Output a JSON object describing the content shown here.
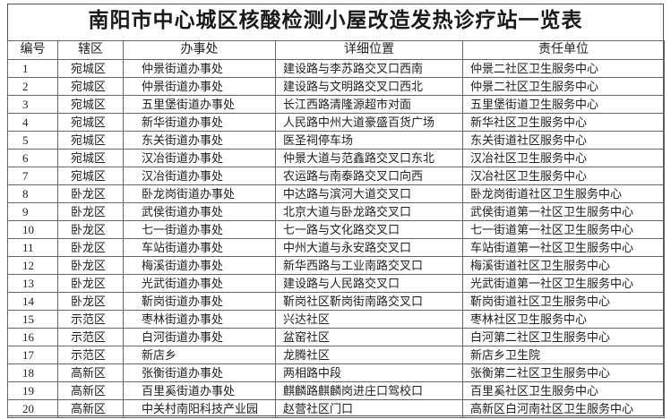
{
  "title": "南阳市中心城区核酸检测小屋改造发热诊疗站一览表",
  "headers": [
    "编号",
    "辖区",
    "办事处",
    "详细位置",
    "责任单位"
  ],
  "rows": [
    [
      "1",
      "宛城区",
      "仲景街道办事处",
      "建设路与李苏路交叉口西南",
      "仲景二社区卫生服务中心"
    ],
    [
      "2",
      "宛城区",
      "仲景街道办事处",
      "建设路与文明路交叉口西北",
      "仲景二社区卫生服务中心"
    ],
    [
      "3",
      "宛城区",
      "五里堡街道办事处",
      "长江西路清隆源超市对面",
      "五里堡街道卫生服务中心"
    ],
    [
      "4",
      "宛城区",
      "新华街道办事处",
      "人民路中州大道豪盛百货广场",
      "新华社区卫生服务中心"
    ],
    [
      "5",
      "宛城区",
      "东关街道办事处",
      "医圣祠停车场",
      "东关街道社区服务中心"
    ],
    [
      "6",
      "宛城区",
      "汉冶街道办事处",
      "仲景大道与范鑫路交叉口东北",
      "汉冶社区卫生服务中心"
    ],
    [
      "7",
      "宛城区",
      "汉冶街道办事处",
      "农运路与南泰路交叉口向西",
      "汉冶社区卫生服务中心"
    ],
    [
      "8",
      "卧龙区",
      "卧龙岗街道办事处",
      "中达路与滨河大道交叉口",
      "卧龙岗街道社区卫生服务中心"
    ],
    [
      "9",
      "卧龙区",
      "武侯街道办事处",
      "北京大道与卧龙路交叉口",
      "武侯街道第一社区卫生服务中心"
    ],
    [
      "10",
      "卧龙区",
      "七一街道办事处",
      "七一路与文化路交叉口",
      "七一街道第一社区卫生服务中心"
    ],
    [
      "11",
      "卧龙区",
      "车站街道办事处",
      "中州大道与永安路交叉口",
      "车站街道第一社区卫生服务中心"
    ],
    [
      "12",
      "卧龙区",
      "梅溪街道办事处",
      "新华西路与工业南路交叉口",
      "梅溪街道社区卫生服务中心"
    ],
    [
      "13",
      "卧龙区",
      "光武街道办事处",
      "建设路与人民路交叉口",
      "光武街道第一社区卫生服务中心"
    ],
    [
      "14",
      "卧龙区",
      "靳岗街道办事处",
      "靳岗社区靳岗街南路交叉口",
      "靳岗街道社区卫生服务中心"
    ],
    [
      "15",
      "示范区",
      "枣林街道办事处",
      "兴达社区",
      "枣林社区卫生服务中心"
    ],
    [
      "16",
      "示范区",
      "白河街道办事处",
      "盆窑社区",
      "白河第二社区卫生服务中心"
    ],
    [
      "17",
      "示范区",
      "新店乡",
      "龙腾社区",
      "新店乡卫生院"
    ],
    [
      "18",
      "高新区",
      "张衡街道办事处",
      "两相路中段",
      "张衡第二社区卫生服务中心"
    ],
    [
      "19",
      "高新区",
      "百里奚街道办事处",
      "麒麟路麒麟岗进庄口驾校口",
      "百里奚社区卫生服务中心"
    ],
    [
      "20",
      "高新区",
      "中关村南阳科技产业园",
      "赵营社区门口",
      "高新区白河南社区卫生服务中心"
    ]
  ]
}
